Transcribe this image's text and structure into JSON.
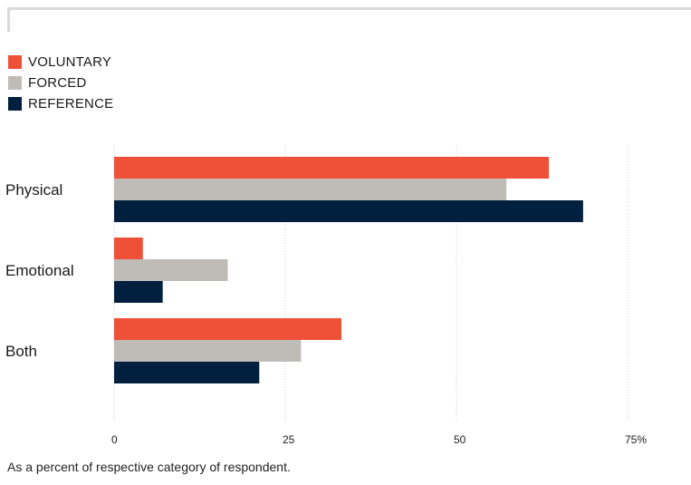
{
  "colors": {
    "voluntary": "#ee5038",
    "forced": "#bfbbb7",
    "reference": "#011f3f",
    "grid": "#c9c9c9"
  },
  "legend": [
    {
      "label": "VOLUNTARY",
      "color": "#ee5038"
    },
    {
      "label": "FORCED",
      "color": "#bfbbb7"
    },
    {
      "label": "REFERENCE",
      "color": "#011f3f"
    }
  ],
  "chart_data": {
    "type": "bar",
    "orientation": "horizontal",
    "categories": [
      "Physical",
      "Emotional",
      "Both"
    ],
    "series": [
      {
        "name": "VOLUNTARY",
        "values": [
          63.5,
          4.2,
          33.2
        ]
      },
      {
        "name": "FORCED",
        "values": [
          57.3,
          16.6,
          27.3
        ]
      },
      {
        "name": "REFERENCE",
        "values": [
          68.5,
          7.1,
          21.2
        ]
      }
    ],
    "xlim": [
      0,
      75
    ],
    "xticks": [
      0,
      25,
      50,
      75
    ],
    "tick_labels": [
      "0",
      "25",
      "50",
      "75%"
    ],
    "grid": true,
    "legend_position": "top-left"
  },
  "footnote": "As a percent of respective category of respondent."
}
